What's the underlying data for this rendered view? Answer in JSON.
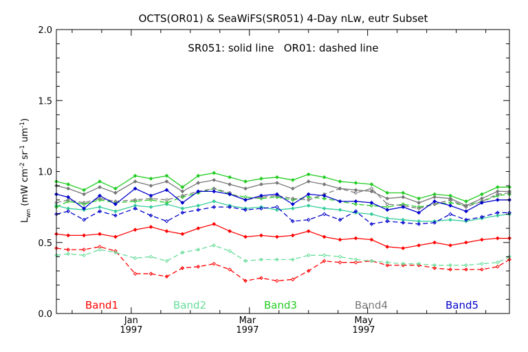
{
  "chart_data": {
    "type": "line",
    "title": "OCTS(OR01) & SeaWiFS(SR051) 4-Day nLw, eutr Subset",
    "subtitle": "SR051: solid line   OR01: dashed line",
    "ylabel": "L_wn (mW cm^-2 sr^-1 um^-1)",
    "ylabel_parts": {
      "main": "L",
      "sub": "wn",
      "unit_open": "(mW cm",
      "exp1": "-2",
      "sr": " sr",
      "exp2": "-1",
      "um": " um",
      "exp3": "-1",
      "close": ")"
    },
    "xlabel": "",
    "ylim": [
      0,
      2
    ],
    "yticks": [
      {
        "value": 0.0,
        "label": "0.0"
      },
      {
        "value": 0.5,
        "label": "0.5"
      },
      {
        "value": 1.0,
        "label": "1.0"
      },
      {
        "value": 1.5,
        "label": "1.5"
      },
      {
        "value": 2.0,
        "label": "2.0"
      }
    ],
    "xlim_days": [
      -19,
      96
    ],
    "xticks": [
      {
        "day": 0,
        "label": "Jan",
        "year": "1997"
      },
      {
        "day": 29.5,
        "label": "Mar",
        "year": "1997"
      },
      {
        "day": 59,
        "label": "May",
        "year": "1997"
      }
    ],
    "x_days": [
      -19,
      -16,
      -12,
      -8,
      -4,
      1,
      5,
      9,
      13,
      17,
      21,
      25,
      29,
      33,
      37,
      41,
      45,
      49,
      53,
      57,
      61,
      65,
      69,
      73,
      77,
      81,
      85,
      89,
      93,
      96
    ],
    "series": [
      {
        "name": "Band1 SR051",
        "band": "Band1",
        "sensor": "SR051",
        "style": "solid",
        "color": "#ff0000",
        "values": [
          0.56,
          0.55,
          0.55,
          0.56,
          0.54,
          0.59,
          0.61,
          0.58,
          0.56,
          0.6,
          0.63,
          0.58,
          0.54,
          0.55,
          0.54,
          0.55,
          0.58,
          0.54,
          0.52,
          0.53,
          0.52,
          0.47,
          0.46,
          0.48,
          0.5,
          0.48,
          0.5,
          0.52,
          0.53,
          0.53
        ]
      },
      {
        "name": "Band1 OR01",
        "band": "Band1",
        "sensor": "OR01",
        "style": "dashed",
        "color": "#ff0000",
        "values": [
          0.46,
          0.45,
          0.45,
          0.47,
          0.44,
          0.28,
          0.28,
          0.26,
          0.32,
          0.33,
          0.35,
          0.31,
          0.23,
          0.25,
          0.23,
          0.24,
          0.3,
          0.37,
          0.36,
          0.36,
          0.37,
          0.34,
          0.34,
          0.34,
          0.32,
          0.31,
          0.31,
          0.31,
          0.33,
          0.38
        ]
      },
      {
        "name": "Band2 SR051",
        "band": "Band2",
        "sensor": "SR051",
        "style": "solid",
        "color": "#33cc99",
        "values": [
          0.76,
          0.74,
          0.73,
          0.75,
          0.72,
          0.76,
          0.75,
          0.77,
          0.74,
          0.76,
          0.79,
          0.76,
          0.74,
          0.75,
          0.73,
          0.74,
          0.76,
          0.74,
          0.73,
          0.71,
          0.7,
          0.67,
          0.66,
          0.65,
          0.65,
          0.66,
          0.65,
          0.67,
          0.69,
          0.7
        ]
      },
      {
        "name": "Band2 OR01",
        "band": "Band2",
        "sensor": "OR01",
        "style": "dashed",
        "color": "#66dd99",
        "values": [
          0.41,
          0.42,
          0.41,
          0.45,
          0.43,
          0.39,
          0.4,
          0.37,
          0.43,
          0.45,
          0.48,
          0.44,
          0.37,
          0.38,
          0.38,
          0.38,
          0.41,
          0.41,
          0.4,
          0.38,
          0.37,
          0.36,
          0.35,
          0.35,
          0.34,
          0.34,
          0.34,
          0.35,
          0.36,
          0.4
        ]
      },
      {
        "name": "Band3 SR051",
        "band": "Band3",
        "sensor": "SR051",
        "style": "solid",
        "color": "#22cc22",
        "values": [
          0.93,
          0.91,
          0.87,
          0.93,
          0.88,
          0.97,
          0.95,
          0.97,
          0.89,
          0.97,
          0.99,
          0.96,
          0.93,
          0.95,
          0.96,
          0.94,
          0.98,
          0.96,
          0.93,
          0.92,
          0.91,
          0.85,
          0.85,
          0.81,
          0.84,
          0.83,
          0.79,
          0.84,
          0.89,
          0.89
        ]
      },
      {
        "name": "Band3 OR01",
        "band": "Band3",
        "sensor": "OR01",
        "style": "dashed",
        "color": "#22cc22",
        "values": [
          0.75,
          0.79,
          0.77,
          0.8,
          0.78,
          0.79,
          0.8,
          0.78,
          0.82,
          0.85,
          0.88,
          0.84,
          0.82,
          0.81,
          0.82,
          0.8,
          0.82,
          0.81,
          0.79,
          0.77,
          0.76,
          0.75,
          0.77,
          0.75,
          0.77,
          0.78,
          0.76,
          0.79,
          0.83,
          0.84
        ]
      },
      {
        "name": "Band4 SR051",
        "band": "Band4",
        "sensor": "SR051",
        "style": "solid",
        "color": "#777777",
        "values": [
          0.9,
          0.88,
          0.84,
          0.89,
          0.85,
          0.93,
          0.9,
          0.93,
          0.86,
          0.92,
          0.94,
          0.91,
          0.88,
          0.91,
          0.92,
          0.88,
          0.93,
          0.91,
          0.88,
          0.87,
          0.86,
          0.81,
          0.82,
          0.78,
          0.82,
          0.81,
          0.76,
          0.81,
          0.86,
          0.86
        ]
      },
      {
        "name": "Band4 OR01",
        "band": "Band4",
        "sensor": "OR01",
        "style": "dashed",
        "color": "#777777",
        "values": [
          0.78,
          0.8,
          0.78,
          0.81,
          0.79,
          0.8,
          0.81,
          0.8,
          0.83,
          0.86,
          0.88,
          0.85,
          0.8,
          0.82,
          0.83,
          0.81,
          0.8,
          0.84,
          0.88,
          0.85,
          0.88,
          0.77,
          0.76,
          0.74,
          0.77,
          0.8,
          0.75,
          0.79,
          0.84,
          0.85
        ]
      },
      {
        "name": "Band5 SR051",
        "band": "Band5",
        "sensor": "SR051",
        "style": "solid",
        "color": "#0000cc",
        "values": [
          0.84,
          0.82,
          0.74,
          0.83,
          0.77,
          0.88,
          0.83,
          0.87,
          0.78,
          0.86,
          0.86,
          0.84,
          0.8,
          0.83,
          0.84,
          0.77,
          0.84,
          0.83,
          0.79,
          0.79,
          0.78,
          0.73,
          0.75,
          0.71,
          0.79,
          0.76,
          0.72,
          0.78,
          0.8,
          0.8
        ]
      },
      {
        "name": "Band5 OR01",
        "band": "Band5",
        "sensor": "OR01",
        "style": "dashed",
        "color": "#0000cc",
        "values": [
          0.7,
          0.72,
          0.66,
          0.72,
          0.69,
          0.74,
          0.69,
          0.65,
          0.71,
          0.73,
          0.75,
          0.75,
          0.73,
          0.74,
          0.75,
          0.65,
          0.66,
          0.7,
          0.66,
          0.72,
          0.63,
          0.65,
          0.64,
          0.63,
          0.64,
          0.7,
          0.66,
          0.68,
          0.71,
          0.71
        ]
      }
    ],
    "legend": [
      {
        "label": "Band1",
        "color": "#ff0000"
      },
      {
        "label": "Band2",
        "color": "#66dd99"
      },
      {
        "label": "Band3",
        "color": "#22cc22"
      },
      {
        "label": "Band4",
        "color": "#777777"
      },
      {
        "label": "Band5",
        "color": "#0000cc"
      }
    ],
    "legend_placement": "bottom-inside",
    "grid": false
  }
}
